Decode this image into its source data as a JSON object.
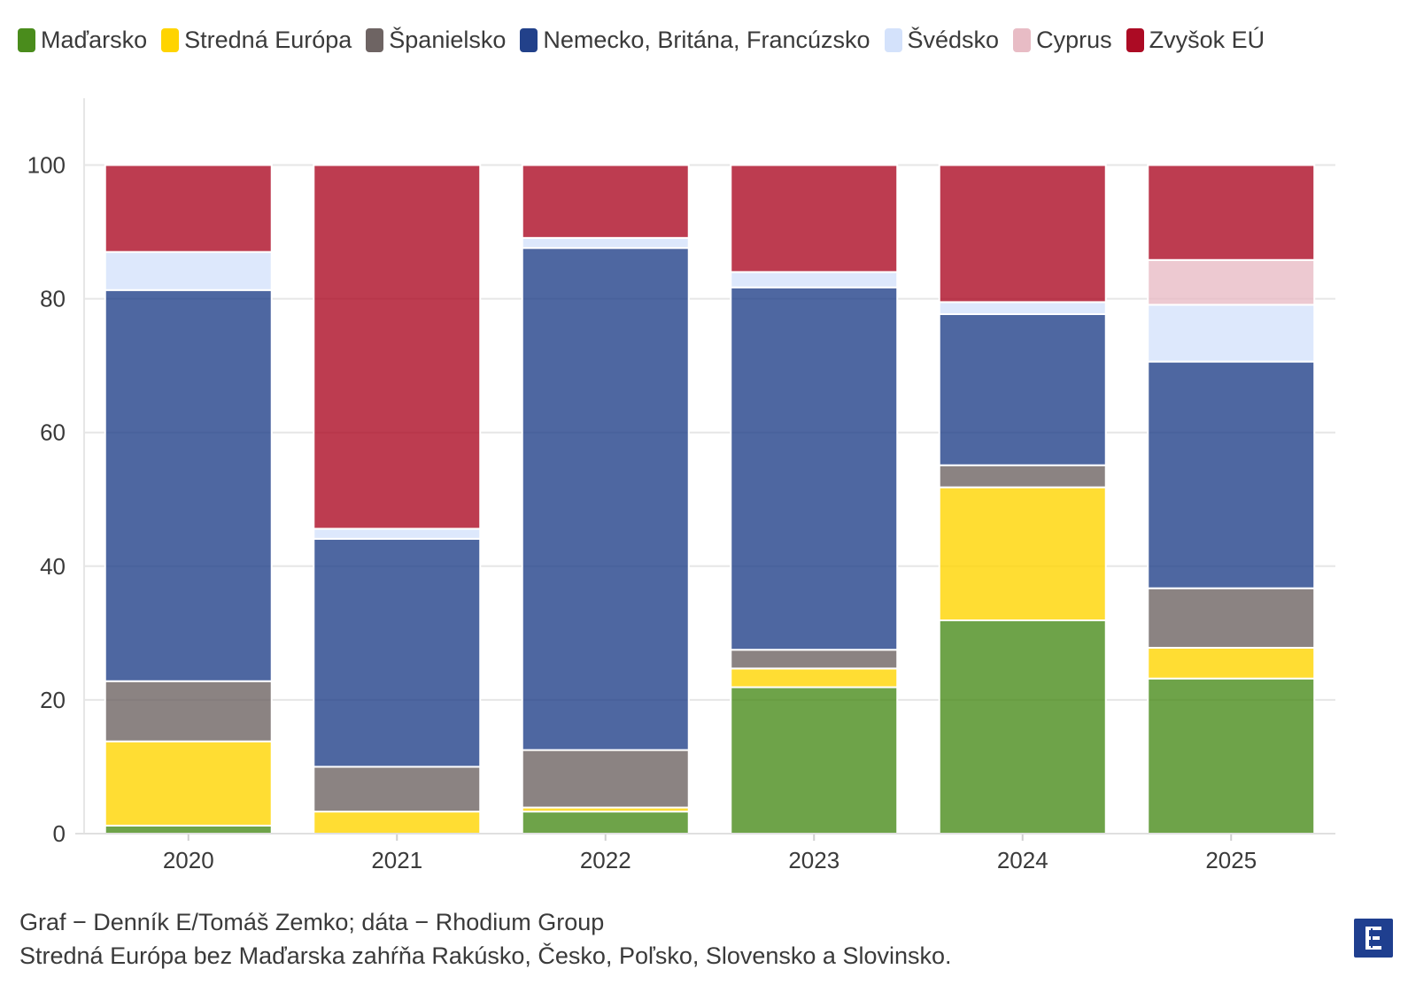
{
  "legend": [
    {
      "label": "Maďarsko",
      "color": "#4a8c1c"
    },
    {
      "label": "Stredná Európa",
      "color": "#ffd400"
    },
    {
      "label": "Španielsko",
      "color": "#6e6463"
    },
    {
      "label": "Nemecko, Britána, Francúzsko",
      "color": "#22418a"
    },
    {
      "label": "Švédsko",
      "color": "#d4e2fb"
    },
    {
      "label": "Cyprus",
      "color": "#e8bcc5"
    },
    {
      "label": "Zvyšok EÚ",
      "color": "#ac0b24"
    }
  ],
  "chart_data": {
    "type": "bar",
    "stacked": true,
    "categories": [
      "2020",
      "2021",
      "2022",
      "2023",
      "2024",
      "2025"
    ],
    "ylim": [
      0,
      110
    ],
    "yticks": [
      0,
      20,
      40,
      60,
      80,
      100
    ],
    "grid": true,
    "legend_position": "top",
    "series": [
      {
        "name": "Maďarsko",
        "color": "#4a8c1c",
        "values": [
          1.2,
          0,
          3.3,
          21.9,
          31.9,
          23.2
        ]
      },
      {
        "name": "Stredná Európa",
        "color": "#ffd400",
        "values": [
          12.6,
          3.3,
          0.6,
          2.8,
          19.9,
          4.6
        ]
      },
      {
        "name": "Španielsko",
        "color": "#6e6463",
        "values": [
          9.0,
          6.7,
          8.6,
          2.8,
          3.3,
          8.9
        ]
      },
      {
        "name": "Nemecko, Britána, Francúzsko",
        "color": "#22418a",
        "values": [
          58.5,
          34.1,
          75.1,
          54.2,
          22.6,
          33.9
        ]
      },
      {
        "name": "Švédsko",
        "color": "#d4e2fb",
        "values": [
          5.7,
          1.5,
          1.5,
          2.3,
          1.8,
          8.5
        ]
      },
      {
        "name": "Cyprus",
        "color": "#e8bcc5",
        "values": [
          0,
          0,
          0,
          0,
          0,
          6.7
        ]
      },
      {
        "name": "Zvyšok EÚ",
        "color": "#ac0b24",
        "values": [
          13.0,
          54.4,
          10.9,
          16.0,
          20.5,
          14.2
        ]
      }
    ]
  },
  "source": {
    "line1": "Graf − Denník E/Tomáš Zemko; dáta − Rhodium Group",
    "line2": "Stredná Európa bez Maďarska zahŕňa Rakúsko, Česko, Poľsko, Slovensko a Slovinsko."
  }
}
